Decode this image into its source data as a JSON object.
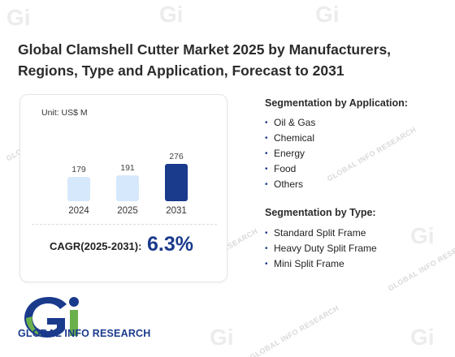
{
  "title_line1": "Global Clamshell Cutter Market 2025 by Manufacturers,",
  "title_line2": "Regions, Type and Application, Forecast to 2031",
  "unit_label": "Unit: US$ M",
  "chart_data": {
    "type": "bar",
    "categories": [
      "2024",
      "2025",
      "2031"
    ],
    "values": [
      179,
      191,
      276
    ],
    "ylabel": "",
    "xlabel": "",
    "bar_colors": [
      "#d6e8fb",
      "#d6e8fb",
      "#1a3a8c"
    ]
  },
  "cagr": {
    "label": "CAGR(2025-2031):",
    "value": "6.3%"
  },
  "application": {
    "title": "Segmentation by Application:",
    "items": [
      "Oil & Gas",
      "Chemical",
      "Energy",
      "Food",
      "Others"
    ]
  },
  "type_seg": {
    "title": "Segmentation by Type:",
    "items": [
      "Standard Split Frame",
      "Heavy Duty Split Frame",
      "Mini Split Frame"
    ]
  },
  "brand": {
    "name": "GLOBAL INFO RESEARCH",
    "watermark": "GLOBAL INFO RESEARCH"
  },
  "colors": {
    "accent": "#1a3a8c",
    "logo_green": "#6ab04c",
    "bar_light": "#d6e8fb"
  }
}
